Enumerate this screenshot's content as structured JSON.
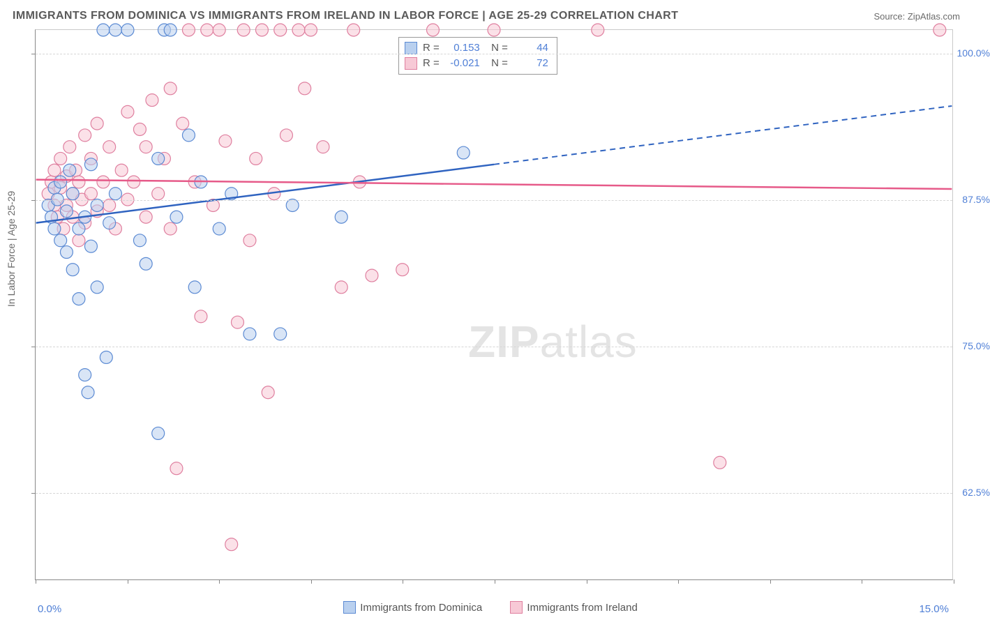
{
  "title": "IMMIGRANTS FROM DOMINICA VS IMMIGRANTS FROM IRELAND IN LABOR FORCE | AGE 25-29 CORRELATION CHART",
  "source": "Source: ZipAtlas.com",
  "ylabel": "In Labor Force | Age 25-29",
  "xaxis": {
    "min": 0.0,
    "max": 15.0,
    "label_left": "0.0%",
    "label_right": "15.0%",
    "ticks_pct": [
      0,
      1.5,
      3,
      4.5,
      6,
      7.5,
      9,
      10.5,
      12,
      13.5,
      15
    ]
  },
  "yaxis": {
    "min": 55.0,
    "max": 102.0,
    "gridlines": [
      62.5,
      75.0,
      87.5,
      100.0
    ],
    "labels": [
      "62.5%",
      "75.0%",
      "87.5%",
      "100.0%"
    ]
  },
  "watermark": "ZIPatlas",
  "series": {
    "dominica": {
      "label": "Immigrants from Dominica",
      "fill": "#b9d0ef",
      "stroke": "#5b8ad3",
      "R": "0.153",
      "N": "44",
      "trend": {
        "solid_from": [
          0.0,
          85.5
        ],
        "solid_to": [
          7.5,
          90.5
        ],
        "dash_to": [
          15.0,
          95.5
        ]
      },
      "points": [
        [
          0.2,
          87.0
        ],
        [
          0.25,
          86.0
        ],
        [
          0.3,
          88.5
        ],
        [
          0.3,
          85.0
        ],
        [
          0.35,
          87.5
        ],
        [
          0.4,
          84.0
        ],
        [
          0.4,
          89.0
        ],
        [
          0.5,
          86.5
        ],
        [
          0.5,
          83.0
        ],
        [
          0.55,
          90.0
        ],
        [
          0.6,
          81.5
        ],
        [
          0.6,
          88.0
        ],
        [
          0.7,
          85.0
        ],
        [
          0.7,
          79.0
        ],
        [
          0.8,
          86.0
        ],
        [
          0.8,
          72.5
        ],
        [
          0.85,
          71.0
        ],
        [
          0.9,
          83.5
        ],
        [
          0.9,
          90.5
        ],
        [
          1.0,
          80.0
        ],
        [
          1.0,
          87.0
        ],
        [
          1.1,
          102.0
        ],
        [
          1.15,
          74.0
        ],
        [
          1.2,
          85.5
        ],
        [
          1.3,
          88.0
        ],
        [
          1.3,
          102.0
        ],
        [
          1.5,
          102.0
        ],
        [
          1.7,
          84.0
        ],
        [
          1.8,
          82.0
        ],
        [
          2.0,
          67.5
        ],
        [
          2.0,
          91.0
        ],
        [
          2.1,
          102.0
        ],
        [
          2.2,
          102.0
        ],
        [
          2.3,
          86.0
        ],
        [
          2.5,
          93.0
        ],
        [
          2.6,
          80.0
        ],
        [
          2.7,
          89.0
        ],
        [
          3.0,
          85.0
        ],
        [
          3.2,
          88.0
        ],
        [
          3.5,
          76.0
        ],
        [
          4.0,
          76.0
        ],
        [
          4.2,
          87.0
        ],
        [
          5.0,
          86.0
        ],
        [
          7.0,
          91.5
        ]
      ]
    },
    "ireland": {
      "label": "Immigrants from Ireland",
      "fill": "#f7c9d6",
      "stroke": "#df7f9f",
      "R": "-0.021",
      "N": "72",
      "trend": {
        "solid_from": [
          0.0,
          89.2
        ],
        "solid_to": [
          15.0,
          88.4
        ]
      },
      "points": [
        [
          0.2,
          88.0
        ],
        [
          0.25,
          89.0
        ],
        [
          0.3,
          87.0
        ],
        [
          0.3,
          90.0
        ],
        [
          0.35,
          86.0
        ],
        [
          0.4,
          88.5
        ],
        [
          0.4,
          91.0
        ],
        [
          0.45,
          85.0
        ],
        [
          0.5,
          89.5
        ],
        [
          0.5,
          87.0
        ],
        [
          0.55,
          92.0
        ],
        [
          0.6,
          86.0
        ],
        [
          0.6,
          88.0
        ],
        [
          0.65,
          90.0
        ],
        [
          0.7,
          84.0
        ],
        [
          0.7,
          89.0
        ],
        [
          0.75,
          87.5
        ],
        [
          0.8,
          93.0
        ],
        [
          0.8,
          85.5
        ],
        [
          0.9,
          91.0
        ],
        [
          0.9,
          88.0
        ],
        [
          1.0,
          86.5
        ],
        [
          1.0,
          94.0
        ],
        [
          1.1,
          89.0
        ],
        [
          1.2,
          87.0
        ],
        [
          1.2,
          92.0
        ],
        [
          1.3,
          85.0
        ],
        [
          1.4,
          90.0
        ],
        [
          1.5,
          95.0
        ],
        [
          1.5,
          87.5
        ],
        [
          1.6,
          89.0
        ],
        [
          1.7,
          93.5
        ],
        [
          1.8,
          86.0
        ],
        [
          1.8,
          92.0
        ],
        [
          1.9,
          96.0
        ],
        [
          2.0,
          88.0
        ],
        [
          2.1,
          91.0
        ],
        [
          2.2,
          85.0
        ],
        [
          2.2,
          97.0
        ],
        [
          2.3,
          64.5
        ],
        [
          2.4,
          94.0
        ],
        [
          2.5,
          102.0
        ],
        [
          2.6,
          89.0
        ],
        [
          2.7,
          77.5
        ],
        [
          2.8,
          102.0
        ],
        [
          2.9,
          87.0
        ],
        [
          3.0,
          102.0
        ],
        [
          3.1,
          92.5
        ],
        [
          3.2,
          58.0
        ],
        [
          3.3,
          77.0
        ],
        [
          3.4,
          102.0
        ],
        [
          3.5,
          84.0
        ],
        [
          3.6,
          91.0
        ],
        [
          3.7,
          102.0
        ],
        [
          3.8,
          71.0
        ],
        [
          3.9,
          88.0
        ],
        [
          4.0,
          102.0
        ],
        [
          4.1,
          93.0
        ],
        [
          4.3,
          102.0
        ],
        [
          4.4,
          97.0
        ],
        [
          4.5,
          102.0
        ],
        [
          4.7,
          92.0
        ],
        [
          5.0,
          80.0
        ],
        [
          5.2,
          102.0
        ],
        [
          5.3,
          89.0
        ],
        [
          5.5,
          81.0
        ],
        [
          6.0,
          81.5
        ],
        [
          6.5,
          102.0
        ],
        [
          7.5,
          102.0
        ],
        [
          9.2,
          102.0
        ],
        [
          11.2,
          65.0
        ],
        [
          14.8,
          102.0
        ]
      ]
    }
  },
  "legend": {
    "item1": "Immigrants from Dominica",
    "item2": "Immigrants from Ireland"
  },
  "colors": {
    "axis_text": "#4f7fd6",
    "grid": "#d6d6d6"
  }
}
